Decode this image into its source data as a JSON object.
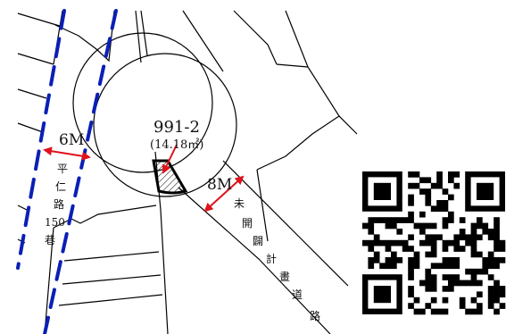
{
  "lot": {
    "number": "991-2",
    "area": "(14.18㎡)"
  },
  "roads": {
    "left": {
      "width": "6M",
      "name_chars": [
        "平",
        "仁",
        "路",
        "150",
        "巷"
      ]
    },
    "right": {
      "width": "8M",
      "name_chars": [
        "未",
        "開",
        "闢",
        "計",
        "畫",
        "道",
        "路"
      ]
    }
  },
  "colors": {
    "road_edge": "#0a1fb5",
    "dimension": "#e0121b"
  },
  "icons": {
    "qr": "qr-code-icon"
  }
}
